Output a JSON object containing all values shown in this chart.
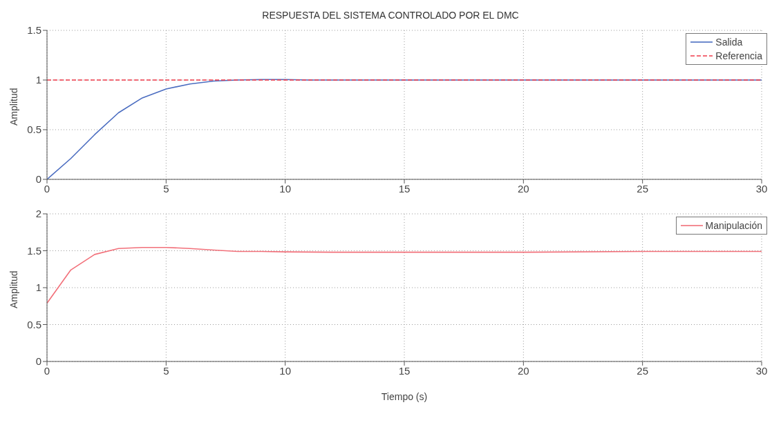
{
  "chart_data": [
    {
      "type": "line",
      "title": "RESPUESTA DEL SISTEMA CONTROLADO POR EL DMC",
      "ylabel": "Amplitud",
      "xlim": [
        0,
        30
      ],
      "xticks": [
        0,
        5,
        10,
        15,
        20,
        25,
        30
      ],
      "ylim": [
        0,
        1.5
      ],
      "yticks": [
        0,
        0.5,
        1,
        1.5
      ],
      "grid": true,
      "legend": "top right",
      "series": [
        {
          "name": "Salida",
          "color": "#4a6cc0",
          "line_style": "solid",
          "x": [
            0,
            1,
            2,
            3,
            4,
            5,
            6,
            7,
            8,
            9,
            10,
            11,
            12,
            15,
            20,
            25,
            30
          ],
          "values": [
            0,
            0.21,
            0.45,
            0.67,
            0.82,
            0.91,
            0.96,
            0.99,
            1.0,
            1.005,
            1.005,
            1.0,
            1.0,
            1.0,
            1.0,
            1.0,
            1.0
          ]
        },
        {
          "name": "Referencia",
          "color": "#f03a4a",
          "line_style": "dashed",
          "x": [
            0,
            30
          ],
          "values": [
            1,
            1
          ]
        }
      ]
    },
    {
      "type": "line",
      "xlabel": "Tiempo (s)",
      "ylabel": "Amplitud",
      "xlim": [
        0,
        30
      ],
      "xticks": [
        0,
        5,
        10,
        15,
        20,
        25,
        30
      ],
      "ylim": [
        0,
        2
      ],
      "yticks": [
        0,
        0.5,
        1,
        1.5,
        2
      ],
      "grid": true,
      "legend": "top right",
      "series": [
        {
          "name": "Manipulación",
          "color": "#f2707a",
          "line_style": "solid",
          "x": [
            0,
            1,
            2,
            3,
            4,
            5,
            6,
            7,
            8,
            9,
            10,
            12,
            15,
            20,
            25,
            30
          ],
          "values": [
            0.79,
            1.24,
            1.45,
            1.53,
            1.545,
            1.545,
            1.53,
            1.51,
            1.49,
            1.49,
            1.485,
            1.48,
            1.48,
            1.48,
            1.49,
            1.49
          ]
        }
      ]
    }
  ]
}
